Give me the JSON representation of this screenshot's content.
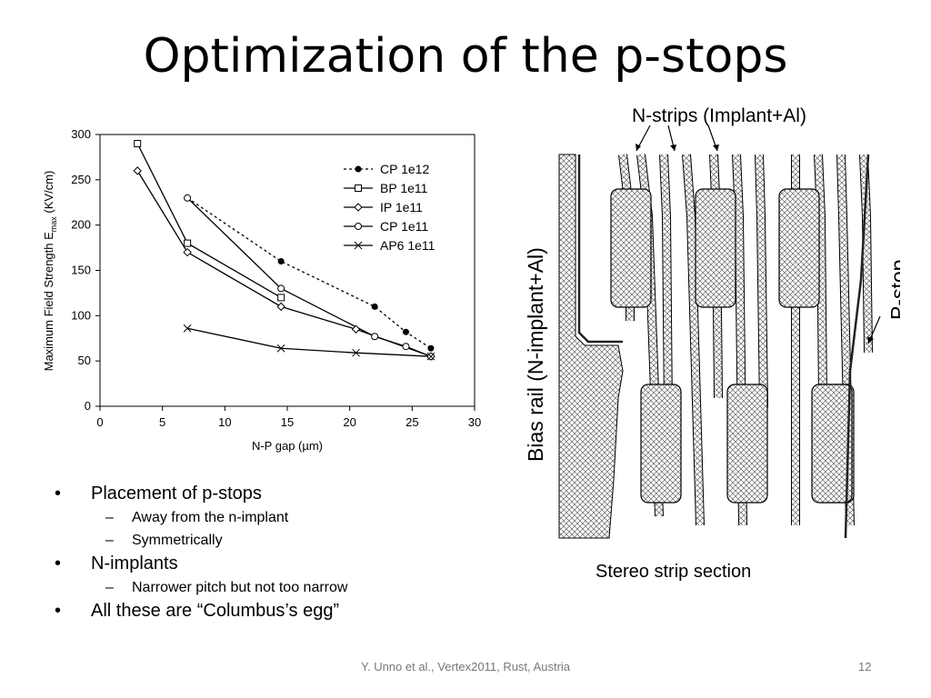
{
  "slide": {
    "title": "Optimization of the p-stops",
    "bullets": [
      {
        "text": "Placement of p-stops",
        "sub": [
          "Away from the n-implant",
          "Symmetrically"
        ]
      },
      {
        "text": "N-implants",
        "sub": [
          "Narrower pitch but not too narrow"
        ]
      },
      {
        "text": "All these are “Columbus’s egg”",
        "sub": []
      }
    ],
    "caption": "Stereo strip section",
    "footer": "Y. Unno et al., Vertex2011, Rust, Austria",
    "page_number": "12"
  },
  "diagram": {
    "top_label": "N-strips (Implant+Al)",
    "left_label": "Bias rail (N-implant+Al)",
    "right_label": "P-stop"
  },
  "chart_data": {
    "type": "line",
    "xlabel": "N-P gap (µm)",
    "ylabel_main": "Maximum Field Strength E",
    "ylabel_sub": "max",
    "ylabel_unit": " (KV/cm)",
    "xlim": [
      0,
      30
    ],
    "ylim": [
      0,
      300
    ],
    "xticks": [
      0,
      5,
      10,
      15,
      20,
      25,
      30
    ],
    "yticks": [
      0,
      50,
      100,
      150,
      200,
      250,
      300
    ],
    "grid": false,
    "legend_position": "top-right",
    "series": [
      {
        "name": "CP 1e12",
        "marker": "filled-circle",
        "dash": "dotted",
        "points": [
          [
            7,
            230
          ],
          [
            14.5,
            160
          ],
          [
            22,
            110
          ],
          [
            24.5,
            82
          ],
          [
            26.5,
            64
          ]
        ]
      },
      {
        "name": "BP 1e11",
        "marker": "square",
        "dash": "solid",
        "points": [
          [
            3,
            290
          ],
          [
            7,
            180
          ],
          [
            14.5,
            120
          ]
        ]
      },
      {
        "name": "IP 1e11",
        "marker": "diamond",
        "dash": "solid",
        "points": [
          [
            3,
            260
          ],
          [
            7,
            170
          ],
          [
            14.5,
            110
          ],
          [
            20.5,
            85
          ],
          [
            26.5,
            55
          ]
        ]
      },
      {
        "name": "CP 1e11",
        "marker": "circle",
        "dash": "solid",
        "points": [
          [
            7,
            230
          ],
          [
            14.5,
            130
          ],
          [
            22,
            77
          ],
          [
            24.5,
            66
          ],
          [
            26.5,
            55
          ]
        ]
      },
      {
        "name": "AP6 1e11",
        "marker": "x",
        "dash": "solid",
        "points": [
          [
            7,
            86
          ],
          [
            14.5,
            64
          ],
          [
            20.5,
            59
          ],
          [
            26.5,
            55
          ]
        ]
      }
    ]
  }
}
